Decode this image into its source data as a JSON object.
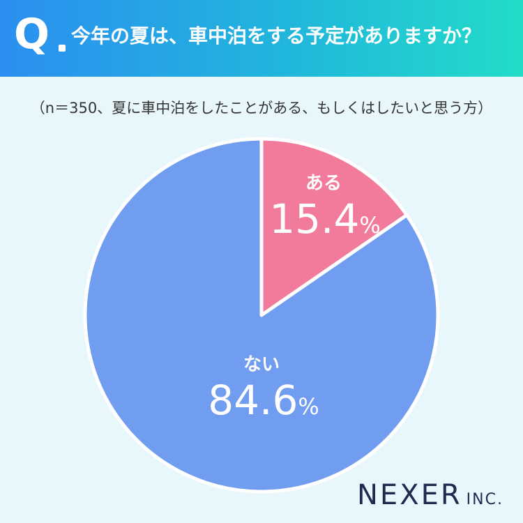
{
  "header": {
    "q_mark": "Q",
    "question": "今年の夏は、車中泊をする予定がありますか？"
  },
  "note": "（n＝350、夏に車中泊をしたことがある、もしくはしたいと思う方）",
  "chart_data": {
    "type": "pie",
    "categories": [
      "ある",
      "ない"
    ],
    "values": [
      15.4,
      84.6
    ],
    "labels": [
      "15.4",
      "84.6"
    ],
    "unit": "%",
    "colors": [
      "#f27a9b",
      "#719df1"
    ]
  },
  "logo": {
    "main": "NEXER",
    "sub": "INC."
  }
}
